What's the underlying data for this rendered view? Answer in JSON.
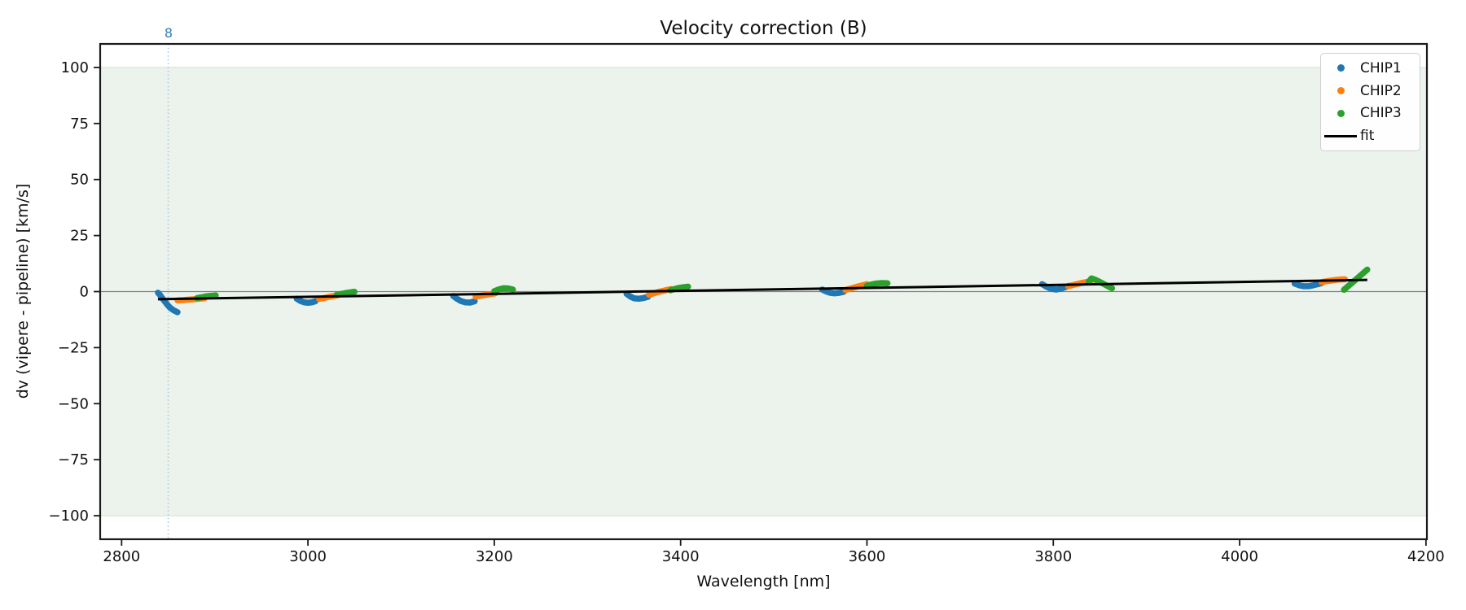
{
  "chart_data": {
    "type": "scatter",
    "title": "Velocity correction (B)",
    "xlabel": "Wavelength [nm]",
    "ylabel": "dv (vipere - pipeline) [km/s]",
    "xlim": [
      2777,
      4201
    ],
    "ylim": [
      -110.5,
      110.5
    ],
    "xticks": [
      2800,
      3000,
      3200,
      3400,
      3600,
      3800,
      4000,
      4200
    ],
    "yticks": [
      100,
      75,
      50,
      25,
      0,
      -25,
      -50,
      -75,
      -100
    ],
    "grid": false,
    "legend_position": "top-right",
    "band": {
      "ymin": -100,
      "ymax": 100,
      "fill": "#ecf3ed",
      "edge": "#dde9dd"
    },
    "zero_line": {
      "y": 0,
      "color": "#7f7f7f"
    },
    "order_marker": {
      "x": 2850,
      "label": "8",
      "label_color": "#2f7fb8",
      "line_color": "#a5c8de"
    },
    "series": [
      {
        "name": "CHIP1",
        "color": "#1f77b4",
        "segments": [
          [
            [
              2839,
              -0.5
            ],
            [
              2841,
              -1.4
            ],
            [
              2843,
              -2.6
            ],
            [
              2846,
              -4.2
            ],
            [
              2849,
              -5.8
            ],
            [
              2852,
              -7.2
            ],
            [
              2856,
              -8.4
            ],
            [
              2860,
              -9.2
            ]
          ],
          [
            [
              2988,
              -3.2
            ],
            [
              2992,
              -4.2
            ],
            [
              2996,
              -4.8
            ],
            [
              3000,
              -5.0
            ],
            [
              3004,
              -4.8
            ],
            [
              3008,
              -4.3
            ]
          ],
          [
            [
              3156,
              -2.0
            ],
            [
              3160,
              -3.2
            ],
            [
              3164,
              -4.2
            ],
            [
              3169,
              -4.8
            ],
            [
              3174,
              -4.9
            ],
            [
              3179,
              -4.3
            ]
          ],
          [
            [
              3342,
              -1.0
            ],
            [
              3346,
              -2.2
            ],
            [
              3350,
              -3.0
            ],
            [
              3355,
              -3.2
            ],
            [
              3360,
              -2.9
            ],
            [
              3365,
              -2.3
            ]
          ],
          [
            [
              3552,
              0.9
            ],
            [
              3556,
              0.1
            ],
            [
              3560,
              -0.5
            ],
            [
              3565,
              -0.8
            ],
            [
              3570,
              -0.6
            ],
            [
              3575,
              -0.1
            ]
          ],
          [
            [
              3788,
              3.3
            ],
            [
              3793,
              2.1
            ],
            [
              3798,
              1.2
            ],
            [
              3803,
              0.9
            ],
            [
              3808,
              1.3
            ],
            [
              3813,
              2.0
            ],
            [
              3817,
              2.6
            ]
          ],
          [
            [
              4059,
              3.6
            ],
            [
              4064,
              2.8
            ],
            [
              4069,
              2.4
            ],
            [
              4074,
              2.4
            ],
            [
              4079,
              2.8
            ],
            [
              4084,
              3.3
            ],
            [
              4088,
              3.8
            ]
          ]
        ]
      },
      {
        "name": "CHIP2",
        "color": "#ff7f0e",
        "segments": [
          [
            [
              2860,
              -3.9
            ],
            [
              2866,
              -3.8
            ],
            [
              2872,
              -3.6
            ],
            [
              2878,
              -3.4
            ],
            [
              2884,
              -3.2
            ],
            [
              2889,
              -3.0
            ]
          ],
          [
            [
              3012,
              -3.3
            ],
            [
              3017,
              -2.9
            ],
            [
              3022,
              -2.4
            ],
            [
              3027,
              -2.0
            ],
            [
              3032,
              -1.6
            ]
          ],
          [
            [
              3180,
              -2.3
            ],
            [
              3185,
              -1.9
            ],
            [
              3190,
              -1.5
            ],
            [
              3196,
              -1.1
            ],
            [
              3201,
              -0.8
            ]
          ],
          [
            [
              3366,
              -1.4
            ],
            [
              3371,
              -0.8
            ],
            [
              3376,
              -0.2
            ],
            [
              3381,
              0.3
            ],
            [
              3386,
              0.8
            ],
            [
              3390,
              1.1
            ]
          ],
          [
            [
              3577,
              0.7
            ],
            [
              3582,
              1.3
            ],
            [
              3587,
              1.9
            ],
            [
              3592,
              2.5
            ],
            [
              3597,
              3.0
            ],
            [
              3600,
              3.3
            ]
          ],
          [
            [
              3816,
              2.4
            ],
            [
              3821,
              2.9
            ],
            [
              3826,
              3.4
            ],
            [
              3831,
              3.9
            ],
            [
              3836,
              4.3
            ],
            [
              3840,
              4.6
            ]
          ],
          [
            [
              4088,
              4.2
            ],
            [
              4093,
              4.6
            ],
            [
              4098,
              4.9
            ],
            [
              4103,
              5.2
            ],
            [
              4108,
              5.4
            ],
            [
              4113,
              5.5
            ]
          ]
        ]
      },
      {
        "name": "CHIP3",
        "color": "#2ca02c",
        "segments": [
          [
            [
              2881,
              -2.9
            ],
            [
              2886,
              -2.5
            ],
            [
              2891,
              -2.1
            ],
            [
              2896,
              -1.9
            ],
            [
              2901,
              -1.7
            ]
          ],
          [
            [
              3031,
              -1.4
            ],
            [
              3036,
              -1.0
            ],
            [
              3041,
              -0.6
            ],
            [
              3046,
              -0.3
            ],
            [
              3050,
              -0.1
            ]
          ],
          [
            [
              3200,
              0.2
            ],
            [
              3205,
              1.0
            ],
            [
              3210,
              1.5
            ],
            [
              3215,
              1.4
            ],
            [
              3220,
              0.9
            ]
          ],
          [
            [
              3389,
              0.6
            ],
            [
              3394,
              1.2
            ],
            [
              3399,
              1.7
            ],
            [
              3404,
              2.0
            ],
            [
              3408,
              2.2
            ]
          ],
          [
            [
              3600,
              2.6
            ],
            [
              3605,
              3.2
            ],
            [
              3610,
              3.6
            ],
            [
              3616,
              3.8
            ],
            [
              3622,
              3.7
            ]
          ],
          [
            [
              3838,
              4.4
            ],
            [
              3841,
              5.9
            ],
            [
              3845,
              5.3
            ],
            [
              3850,
              4.3
            ],
            [
              3855,
              3.2
            ],
            [
              3860,
              2.1
            ],
            [
              3863,
              1.5
            ]
          ],
          [
            [
              4112,
              0.8
            ],
            [
              4117,
              2.6
            ],
            [
              4122,
              4.4
            ],
            [
              4127,
              6.2
            ],
            [
              4132,
              8.0
            ],
            [
              4137,
              9.8
            ]
          ]
        ]
      }
    ],
    "fit": {
      "label": "fit",
      "color": "#000000",
      "points": [
        [
          2839,
          -3.4
        ],
        [
          4137,
          5.2
        ]
      ]
    }
  }
}
